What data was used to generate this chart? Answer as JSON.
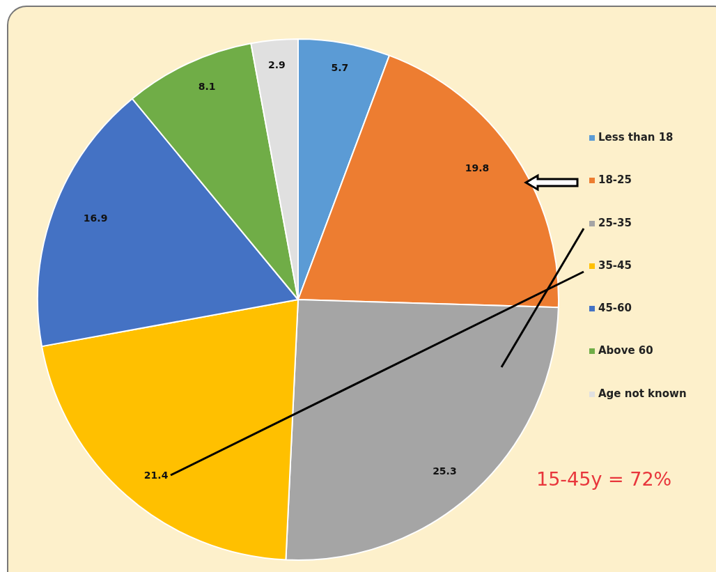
{
  "chart_data": {
    "type": "pie",
    "categories": [
      "Less than 18",
      "18-25",
      "25-35",
      "35-45",
      "45-60",
      "Above 60",
      "Age not known"
    ],
    "values": [
      5.7,
      19.8,
      25.3,
      21.4,
      16.9,
      8.1,
      2.9
    ],
    "colors": [
      "#5b9bd5",
      "#ed7d31",
      "#a5a5a5",
      "#ffc000",
      "#4472c4",
      "#70ad47",
      "#e0e0e0"
    ],
    "data_labels": true,
    "legend": "right",
    "annotations": [
      "15-45y = 72%"
    ]
  }
}
